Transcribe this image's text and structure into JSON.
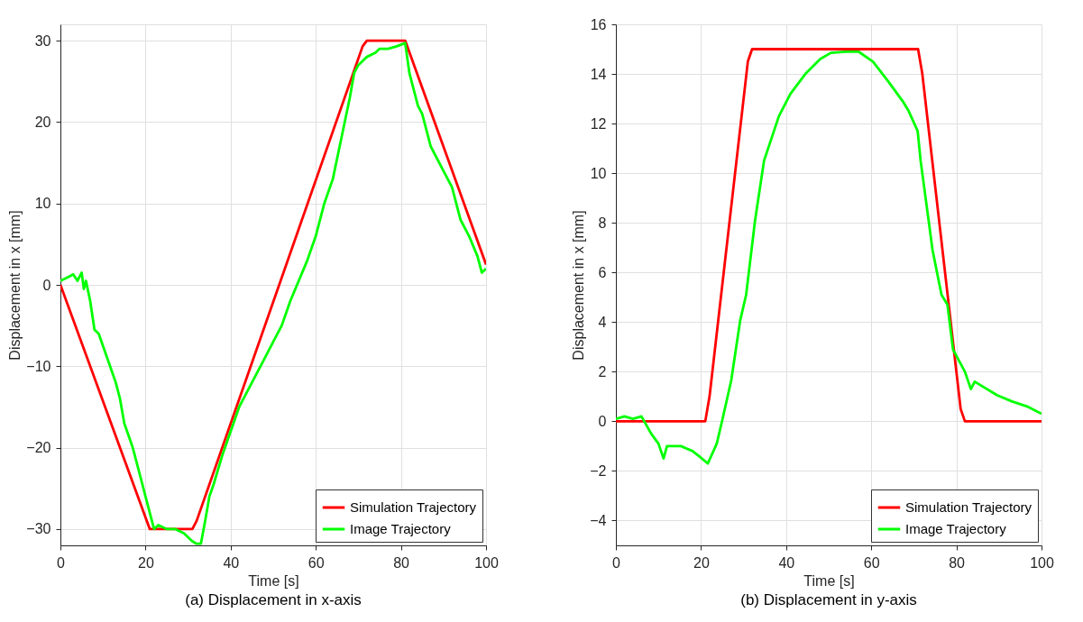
{
  "chart_data": [
    {
      "type": "line",
      "title": "(a) Displacement in x-axis",
      "xlabel": "Time [s]",
      "ylabel": "Displacement in x [mm]",
      "xlim": [
        0,
        100
      ],
      "xticks": [
        0,
        20,
        40,
        60,
        80,
        100
      ],
      "ylim": [
        -32,
        32
      ],
      "yticks": [
        -30,
        -20,
        -10,
        0,
        10,
        20,
        30
      ],
      "grid": true,
      "legend": "bottom right",
      "line_style": "solid",
      "series": [
        {
          "name": "Simulation Trajectory",
          "color": "#ff0000",
          "x": [
            0,
            21,
            31,
            32,
            71,
            72,
            81,
            100
          ],
          "values": [
            0,
            -30,
            -30,
            -29,
            29.3,
            30,
            30,
            2.5
          ]
        },
        {
          "name": "Image Trajectory",
          "color": "#00ff00",
          "x": [
            0,
            2,
            3,
            4,
            5,
            5.5,
            6,
            7,
            8,
            9,
            10,
            11,
            12,
            13,
            14,
            15,
            16,
            17,
            18,
            19,
            20,
            21,
            22,
            23,
            25,
            27,
            29,
            30,
            31,
            32,
            33,
            34,
            35,
            36,
            38,
            40,
            42,
            44,
            46,
            48,
            50,
            52,
            54,
            56,
            58,
            60,
            62,
            64,
            66,
            68,
            69,
            70,
            71,
            72,
            74,
            75,
            77,
            79,
            80,
            81,
            82,
            84,
            85,
            86,
            87,
            88,
            90,
            92,
            94,
            96,
            98,
            99,
            100
          ],
          "values": [
            0.5,
            1,
            1.3,
            0.5,
            1.5,
            -0.5,
            0.5,
            -2,
            -5.5,
            -6,
            -7.5,
            -9,
            -10.5,
            -12,
            -14,
            -17,
            -18.5,
            -20,
            -22,
            -24,
            -26,
            -28,
            -30,
            -29.5,
            -30,
            -30,
            -30.5,
            -31,
            -31.5,
            -31.8,
            -31.8,
            -29,
            -26,
            -24.5,
            -21,
            -18,
            -15,
            -13,
            -11,
            -9,
            -7,
            -5,
            -2,
            0.5,
            3,
            6,
            10,
            13,
            18,
            23,
            26,
            27,
            27.5,
            28,
            28.5,
            29,
            29,
            29.3,
            29.5,
            29.7,
            26,
            22,
            21,
            19,
            17,
            16,
            14,
            12,
            8,
            6,
            3.5,
            1.5,
            2
          ]
        }
      ]
    },
    {
      "type": "line",
      "title": "(b) Displacement in y-axis",
      "xlabel": "Time [s]",
      "ylabel": "Displacement in x [mm]",
      "xlim": [
        0,
        100
      ],
      "xticks": [
        0,
        20,
        40,
        60,
        80,
        100
      ],
      "ylim": [
        -5,
        16
      ],
      "yticks": [
        -4,
        -2,
        0,
        2,
        4,
        6,
        8,
        10,
        12,
        14,
        16
      ],
      "grid": true,
      "legend": "bottom right",
      "line_style": "solid",
      "series": [
        {
          "name": "Simulation Trajectory",
          "color": "#ff0000",
          "x": [
            0,
            21,
            22,
            31,
            32,
            71,
            72,
            81,
            82,
            100
          ],
          "values": [
            0,
            0,
            1,
            14.5,
            15,
            15,
            14,
            0.5,
            0,
            0
          ]
        },
        {
          "name": "Image Trajectory",
          "color": "#00ff00",
          "x": [
            0,
            2,
            4,
            6,
            8.3,
            10,
            11.2,
            12,
            15.3,
            18,
            19.5,
            21.6,
            23.7,
            25,
            27.1,
            29.2,
            30.6,
            32.7,
            34.8,
            38.3,
            41,
            44.5,
            48,
            50.5,
            54,
            57,
            60.4,
            64,
            67.4,
            68.8,
            70.9,
            71.6,
            73,
            74.4,
            76.5,
            77.9,
            79.2,
            82,
            83.4,
            84.3,
            89.6,
            93.1,
            96.6,
            100
          ],
          "values": [
            0.1,
            0.2,
            0.1,
            0.2,
            -0.5,
            -0.9,
            -1.5,
            -1.0,
            -1.0,
            -1.2,
            -1.4,
            -1.7,
            -0.9,
            0.05,
            1.65,
            4.06,
            5.1,
            8.1,
            10.5,
            12.3,
            13.2,
            14,
            14.6,
            14.85,
            14.9,
            14.9,
            14.5,
            13.7,
            12.9,
            12.5,
            11.7,
            10.5,
            8.7,
            6.9,
            5.1,
            4.7,
            2.9,
            2.0,
            1.3,
            1.6,
            1.05,
            0.8,
            0.6,
            0.3
          ]
        }
      ]
    }
  ]
}
